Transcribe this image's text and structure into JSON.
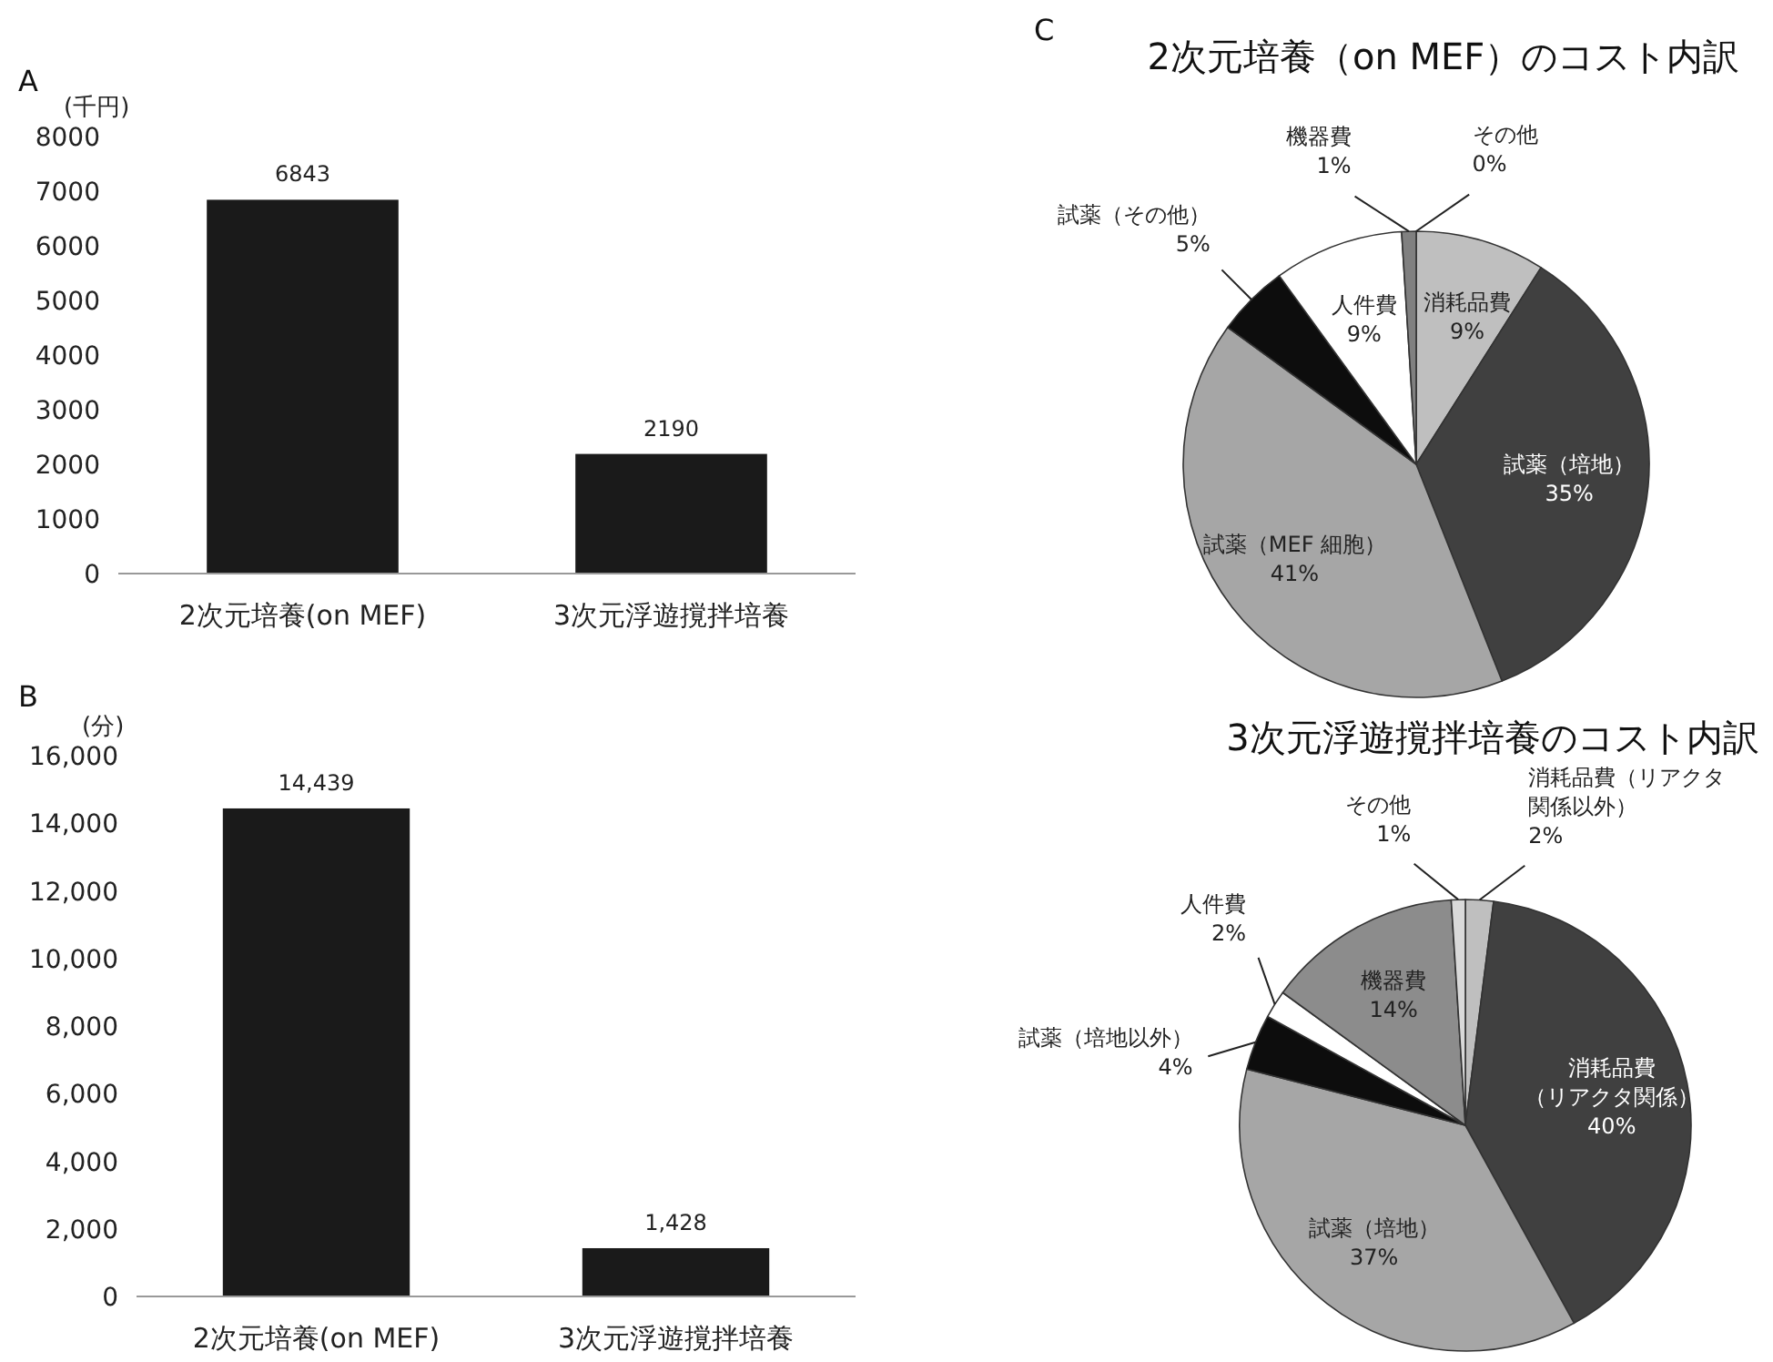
{
  "chart_data": [
    {
      "type": "bar",
      "annotations": [
        "A"
      ],
      "ylabel": "(千円)",
      "categories": [
        "2次元培養(on MEF)",
        "3次元浮遊撹拌培養"
      ],
      "values": [
        6843,
        2190
      ],
      "color": "#1a1a1a",
      "ylim": [
        0,
        8000
      ],
      "yticks": [
        0,
        1000,
        2000,
        3000,
        4000,
        5000,
        6000,
        7000,
        8000
      ],
      "data_labels": true,
      "grid": false
    },
    {
      "type": "bar",
      "annotations": [
        "B"
      ],
      "ylabel": "(分)",
      "categories": [
        "2次元培養(on MEF)",
        "3次元浮遊撹拌培養"
      ],
      "values": [
        14439,
        1428
      ],
      "value_labels": [
        "14,439",
        "1,428"
      ],
      "color": "#1a1a1a",
      "ylim": [
        0,
        16000
      ],
      "yticks": [
        {
          "value": 0,
          "label": "0"
        },
        {
          "value": 2000,
          "label": "2,000"
        },
        {
          "value": 4000,
          "label": "4,000"
        },
        {
          "value": 6000,
          "label": "6,000"
        },
        {
          "value": 8000,
          "label": "8,000"
        },
        {
          "value": 10000,
          "label": "10,000"
        },
        {
          "value": 12000,
          "label": "12,000"
        },
        {
          "value": 14000,
          "label": "14,000"
        },
        {
          "value": 16000,
          "label": "16,000"
        }
      ],
      "grid": false
    },
    {
      "type": "pie",
      "annotations": [
        "C"
      ],
      "title": "2次元培養（on MEF）のコスト内訳",
      "categories": [
        "消耗品費",
        "試薬（培地）",
        "試薬（MEF 細胞）",
        "試薬（その他）",
        "人件費",
        "機器費",
        "その他"
      ],
      "values": [
        9,
        35,
        41,
        5,
        9,
        1,
        0
      ],
      "colors": [
        "#bfbfbf",
        "#404040",
        "#a6a6a6",
        "#0d0d0d",
        "#ffffff",
        "#808080",
        "#595959"
      ],
      "value_labels": [
        "9%",
        "35%",
        "41%",
        "5%",
        "9%",
        "1%",
        "0%"
      ]
    },
    {
      "type": "pie",
      "title": "3次元浮遊撹拌培養のコスト内訳",
      "categories": [
        "消耗品費（リアクタ関係以外）",
        "消耗品費（リアクタ関係）",
        "試薬（培地）",
        "試薬（培地以外）",
        "人件費",
        "機器費",
        "その他"
      ],
      "values": [
        2,
        40,
        37,
        4,
        2,
        14,
        1
      ],
      "colors": [
        "#bfbfbf",
        "#404040",
        "#a6a6a6",
        "#0d0d0d",
        "#ffffff",
        "#8c8c8c",
        "#d9d9d9"
      ],
      "value_labels": [
        "2%",
        "40%",
        "37%",
        "4%",
        "2%",
        "14%",
        "1%"
      ]
    }
  ]
}
